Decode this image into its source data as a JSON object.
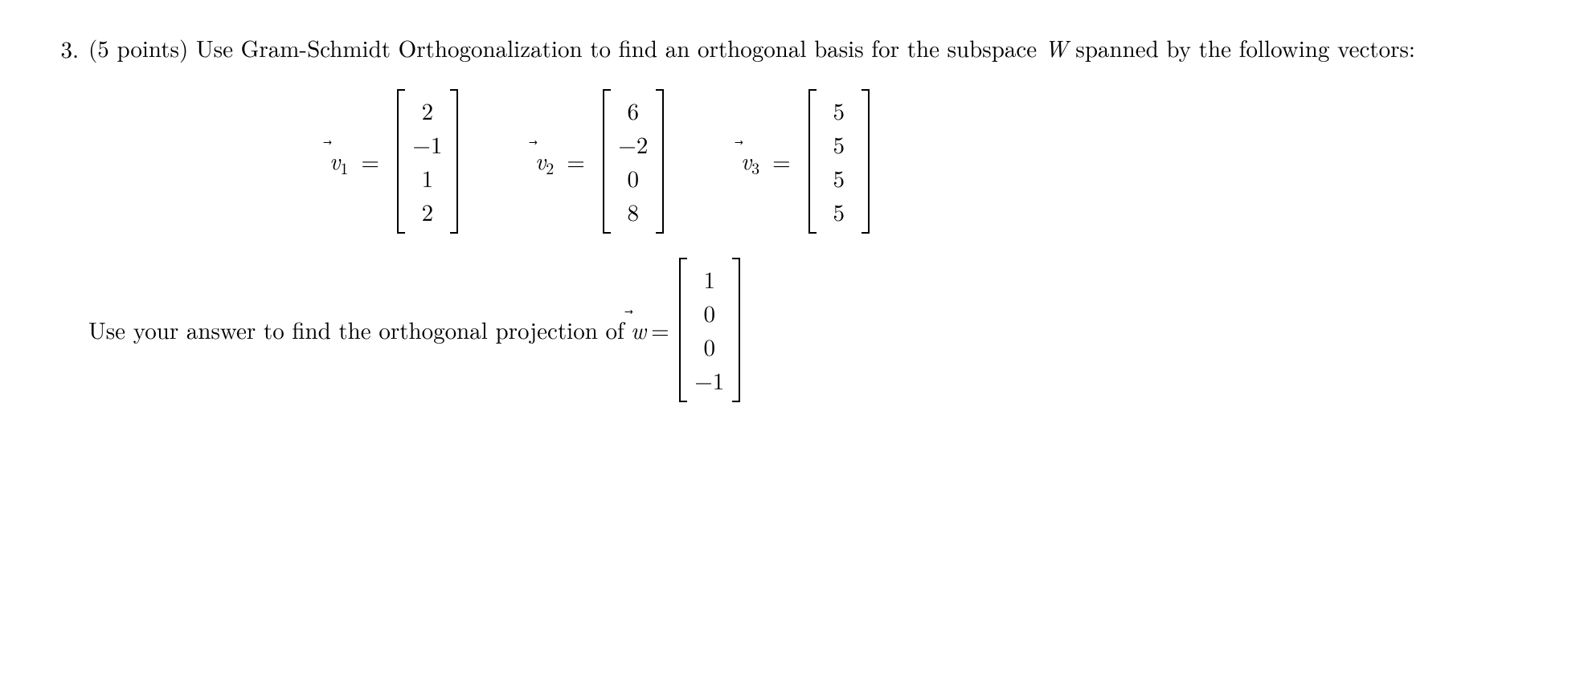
{
  "problem": {
    "number": "3.",
    "points_label": "(5 points)",
    "intro_part1": " Use Gram-Schmidt Orthogonalization to find an orthogonal basis for the subspace ",
    "subspace_var": "W",
    "intro_part2": " spanned by the following vectors:",
    "vectors": [
      {
        "label": "v",
        "subscript": "1",
        "entries": [
          "2",
          "−1",
          "1",
          "2"
        ]
      },
      {
        "label": "v",
        "subscript": "2",
        "entries": [
          "6",
          "−2",
          "0",
          "8"
        ]
      },
      {
        "label": "v",
        "subscript": "3",
        "entries": [
          "5",
          "5",
          "5",
          "5"
        ]
      }
    ],
    "followup_text": "Use your answer to find the orthogonal projection of ",
    "followup_vector": {
      "label": "w",
      "entries": [
        "1",
        "0",
        "0",
        "−1"
      ]
    },
    "equals": "=",
    "arrow_glyph": "⃗",
    "colors": {
      "background": "#ffffff",
      "text": "#000000"
    },
    "fontsize_pt": 21
  }
}
